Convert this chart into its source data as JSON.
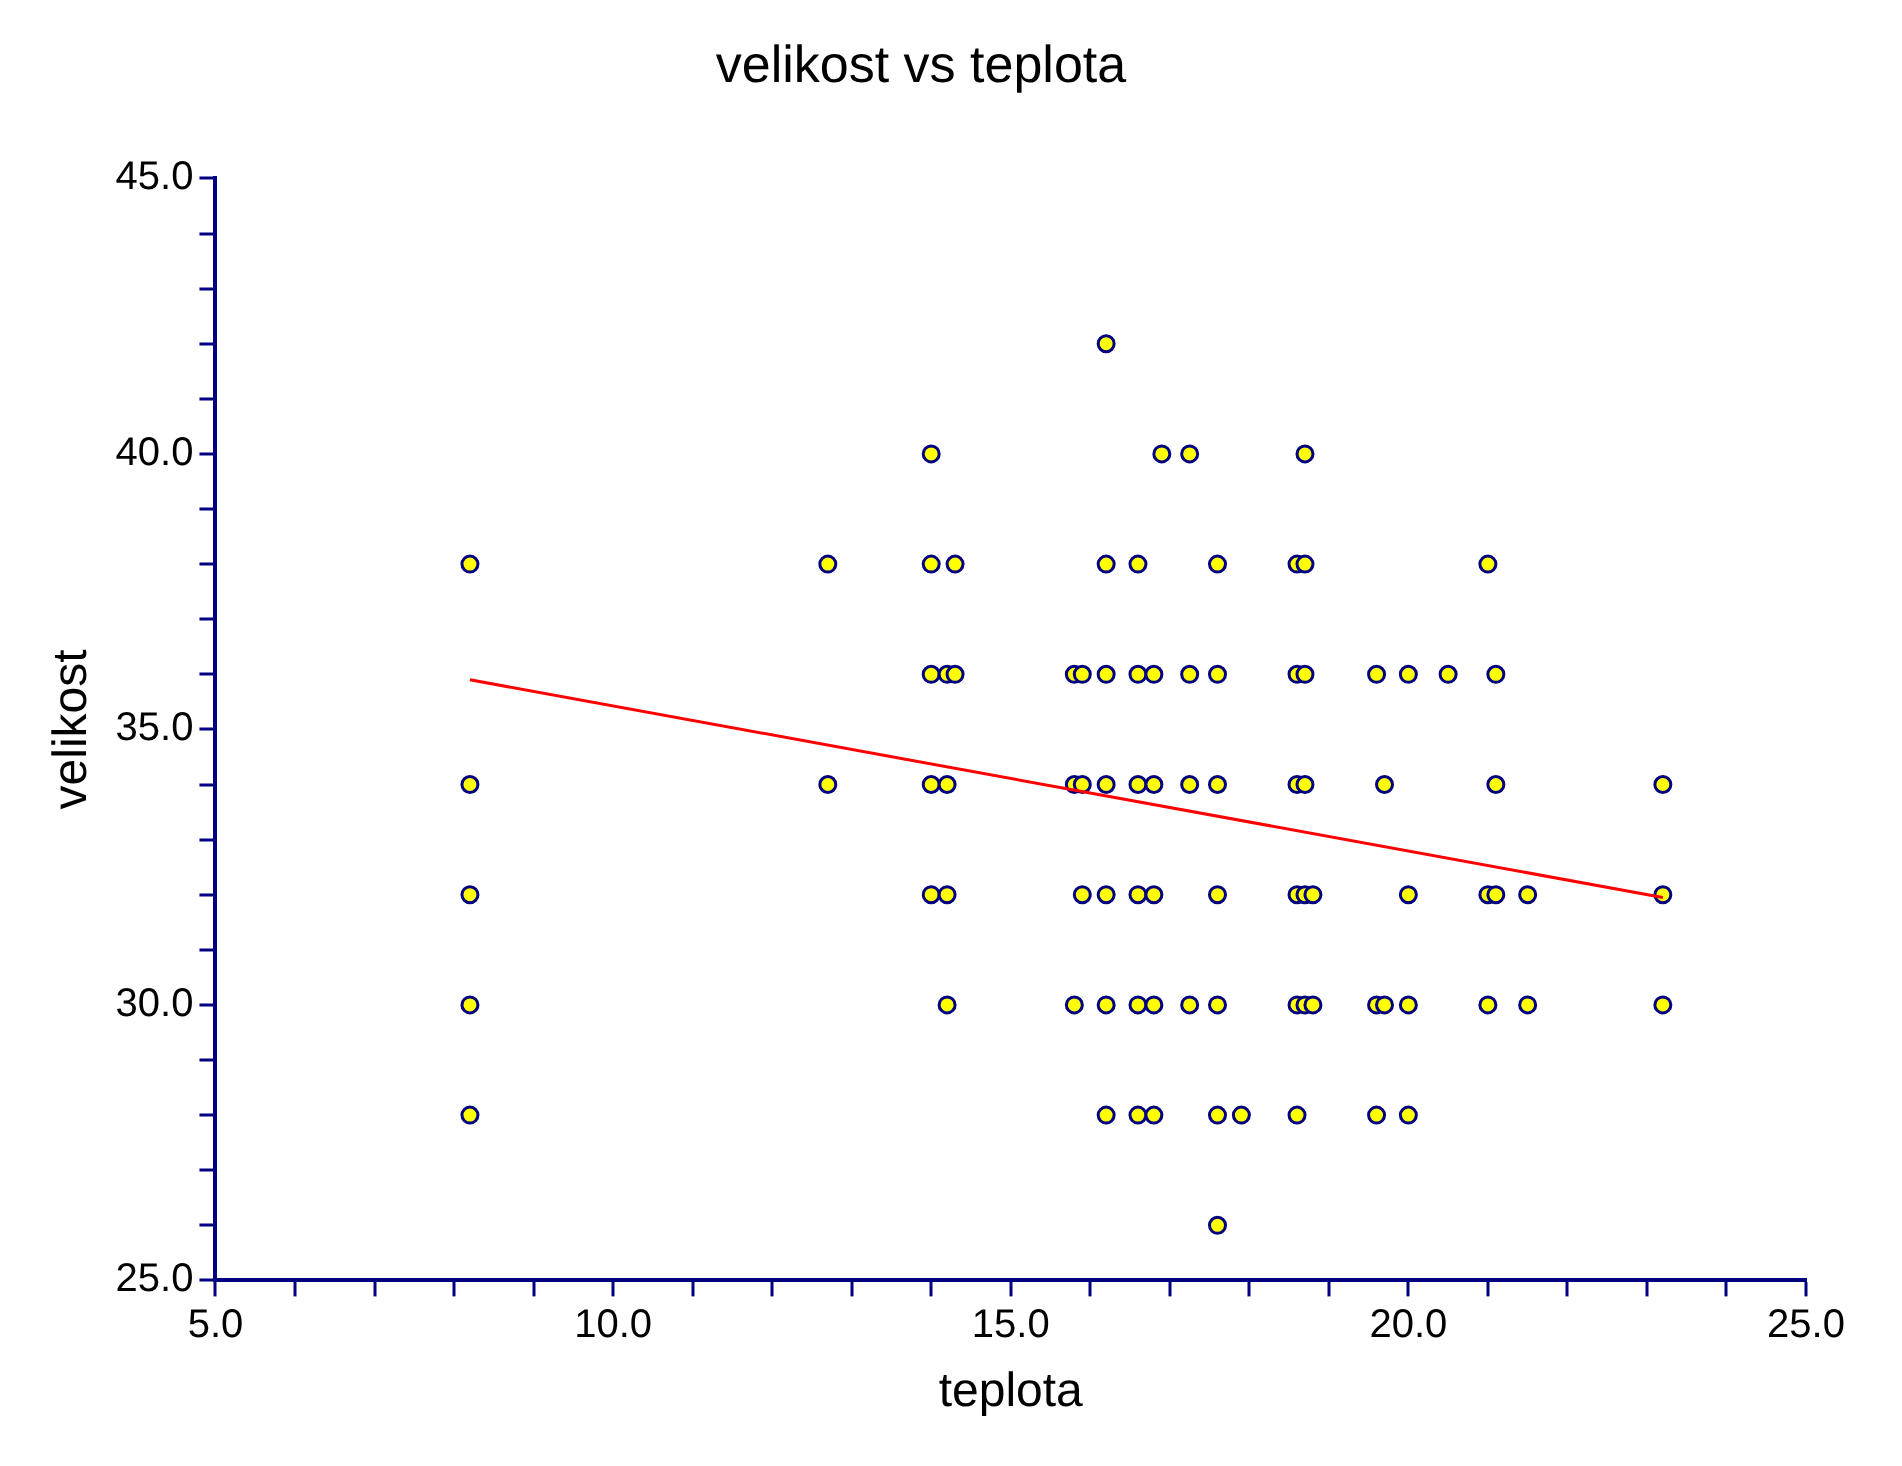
{
  "chart_data": {
    "type": "scatter",
    "title": "velikost vs teplota",
    "xlabel": "teplota",
    "ylabel": "velikost",
    "marker": "circle",
    "grid": false,
    "legend": false,
    "xlim": [
      5,
      25
    ],
    "ylim": [
      25,
      45
    ],
    "xticks": [
      {
        "value": 5,
        "label": "5.0"
      },
      {
        "value": 6,
        "label": null
      },
      {
        "value": 7,
        "label": null
      },
      {
        "value": 8,
        "label": null
      },
      {
        "value": 9,
        "label": null
      },
      {
        "value": 10,
        "label": "10.0"
      },
      {
        "value": 11,
        "label": null
      },
      {
        "value": 12,
        "label": null
      },
      {
        "value": 13,
        "label": null
      },
      {
        "value": 14,
        "label": null
      },
      {
        "value": 15,
        "label": "15.0"
      },
      {
        "value": 16,
        "label": null
      },
      {
        "value": 17,
        "label": null
      },
      {
        "value": 18,
        "label": null
      },
      {
        "value": 19,
        "label": null
      },
      {
        "value": 20,
        "label": "20.0"
      },
      {
        "value": 21,
        "label": null
      },
      {
        "value": 22,
        "label": null
      },
      {
        "value": 23,
        "label": null
      },
      {
        "value": 24,
        "label": null
      },
      {
        "value": 25,
        "label": "25.0"
      }
    ],
    "yticks": [
      {
        "value": 25,
        "label": "25.0"
      },
      {
        "value": 26,
        "label": null
      },
      {
        "value": 27,
        "label": null
      },
      {
        "value": 28,
        "label": null
      },
      {
        "value": 29,
        "label": null
      },
      {
        "value": 30,
        "label": "30.0"
      },
      {
        "value": 31,
        "label": null
      },
      {
        "value": 32,
        "label": null
      },
      {
        "value": 33,
        "label": null
      },
      {
        "value": 34,
        "label": null
      },
      {
        "value": 35,
        "label": "35.0"
      },
      {
        "value": 36,
        "label": null
      },
      {
        "value": 37,
        "label": null
      },
      {
        "value": 38,
        "label": null
      },
      {
        "value": 39,
        "label": null
      },
      {
        "value": 40,
        "label": "40.0"
      },
      {
        "value": 41,
        "label": null
      },
      {
        "value": 42,
        "label": null
      },
      {
        "value": 43,
        "label": null
      },
      {
        "value": 44,
        "label": null
      },
      {
        "value": 45,
        "label": "45.0"
      }
    ],
    "series": [
      {
        "color": "#ffff00",
        "x": [
          8.2,
          8.2,
          8.2,
          8.2,
          8.2,
          12.7,
          12.7,
          14.0,
          14.0,
          14.0,
          14.0,
          14.0,
          14.2,
          14.2,
          14.2,
          14.2,
          14.3,
          14.3,
          15.8,
          15.8,
          15.8,
          15.9,
          15.9,
          15.9,
          16.2,
          16.2,
          16.2,
          16.2,
          16.2,
          16.2,
          16.2,
          16.6,
          16.6,
          16.6,
          16.6,
          16.6,
          16.6,
          16.8,
          16.8,
          16.8,
          16.8,
          16.8,
          16.9,
          17.25,
          17.25,
          17.25,
          17.25,
          17.6,
          17.6,
          17.6,
          17.6,
          17.6,
          17.6,
          17.6,
          17.9,
          18.6,
          18.6,
          18.6,
          18.6,
          18.6,
          18.6,
          18.7,
          18.7,
          18.7,
          18.7,
          18.7,
          18.7,
          18.8,
          18.8,
          19.6,
          19.6,
          19.6,
          19.7,
          19.7,
          20.0,
          20.0,
          20.0,
          20.0,
          20.5,
          21.0,
          21.0,
          21.0,
          21.1,
          21.1,
          21.1,
          21.5,
          21.5,
          23.2,
          23.2,
          23.2
        ],
        "values": [
          38,
          34,
          32,
          30,
          28,
          38,
          34,
          40,
          38,
          36,
          34,
          32,
          36,
          34,
          32,
          30,
          38,
          36,
          36,
          34,
          30,
          36,
          34,
          32,
          42,
          38,
          36,
          34,
          32,
          30,
          28,
          38,
          36,
          34,
          32,
          30,
          28,
          36,
          34,
          32,
          30,
          28,
          40,
          40,
          36,
          34,
          30,
          38,
          36,
          34,
          32,
          30,
          28,
          26,
          28,
          38,
          36,
          34,
          32,
          30,
          28,
          40,
          38,
          36,
          34,
          32,
          30,
          32,
          30,
          36,
          30,
          28,
          34,
          30,
          36,
          32,
          30,
          28,
          36,
          38,
          32,
          30,
          36,
          34,
          32,
          32,
          30,
          34,
          32,
          30
        ]
      },
      {
        "type": "line",
        "color": "#ff0000",
        "marker": "none",
        "x": [
          8.2,
          23.2
        ],
        "values": [
          35.9,
          31.95
        ]
      }
    ]
  }
}
